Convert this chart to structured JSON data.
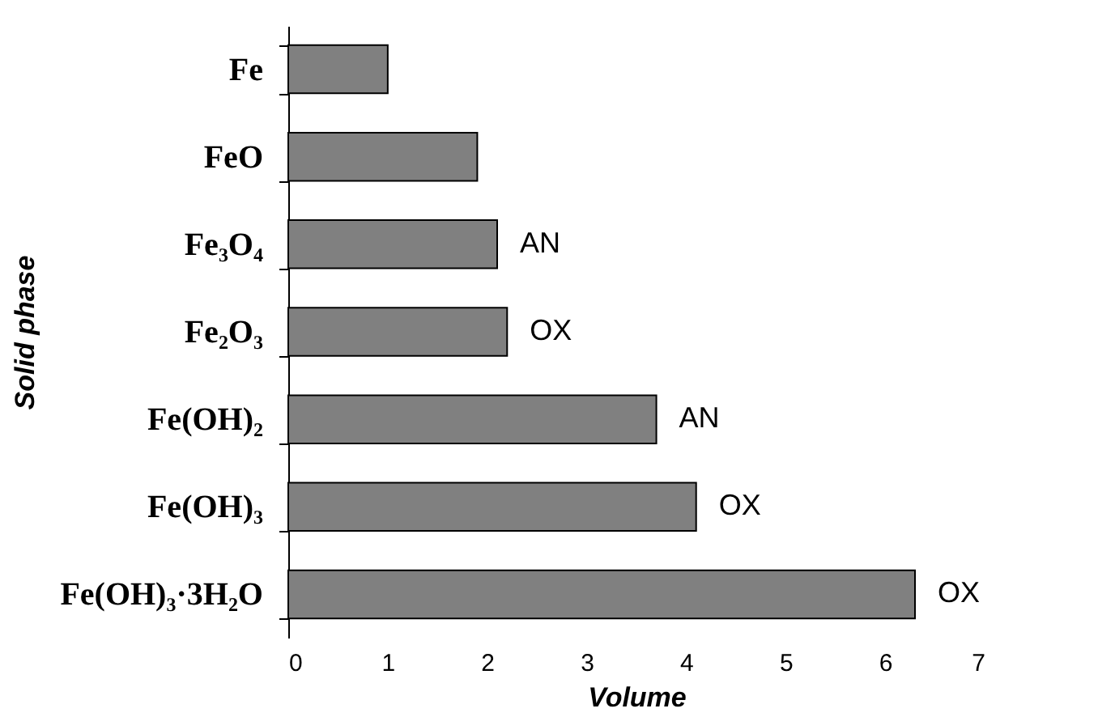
{
  "chart_data": {
    "type": "bar",
    "orientation": "horizontal",
    "xlabel": "Volume",
    "ylabel": "Solid phase",
    "categories": [
      "Fe",
      "FeO",
      "Fe₃O₄",
      "Fe₂O₃",
      "Fe(OH)₂",
      "Fe(OH)₃",
      "Fe(OH)₃·3H₂O"
    ],
    "values": [
      1.0,
      1.9,
      2.1,
      2.2,
      3.7,
      4.1,
      6.3
    ],
    "color": "#808080",
    "xlim": [
      0,
      7
    ],
    "xticks": [
      0,
      1,
      2,
      3,
      4,
      5,
      6,
      7
    ],
    "grid": false,
    "annotations": [
      {
        "text": "AN",
        "x": 2.1,
        "y": "Fe₃O₄"
      },
      {
        "text": "OX",
        "x": 2.2,
        "y": "Fe₂O₃"
      },
      {
        "text": "AN",
        "x": 3.7,
        "y": "Fe(OH)₂"
      },
      {
        "text": "OX",
        "x": 4.1,
        "y": "Fe(OH)₃"
      },
      {
        "text": "OX",
        "x": 6.3,
        "y": "Fe(OH)₃·3H₂O"
      }
    ]
  }
}
